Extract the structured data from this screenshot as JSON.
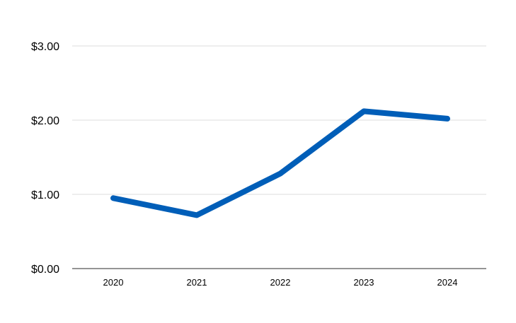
{
  "chart_data": {
    "type": "line",
    "title": "",
    "xlabel": "",
    "ylabel": "",
    "categories": [
      "2020",
      "2021",
      "2022",
      "2023",
      "2024"
    ],
    "series": [
      {
        "values": [
          0.95,
          0.72,
          1.28,
          2.12,
          2.02
        ],
        "color": "#005EB8"
      }
    ],
    "y_ticks": [
      0,
      1,
      2,
      3
    ],
    "y_tick_labels": [
      "$0.00",
      "$1.00",
      "$2.00",
      "$3.00"
    ],
    "ylim": [
      0,
      3
    ],
    "grid": true,
    "legend": "none"
  }
}
